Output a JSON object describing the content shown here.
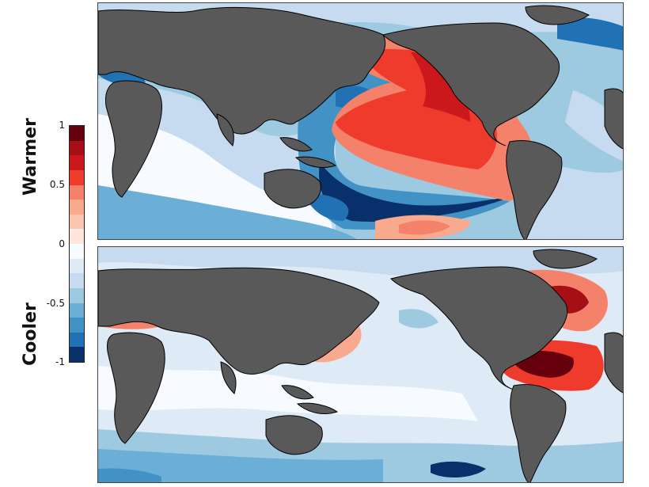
{
  "labels": {
    "warm": "Warmer",
    "cool": "Cooler"
  },
  "colorbar": {
    "ticks": [
      "1",
      "0.5",
      "0",
      "-0.5",
      "-1"
    ],
    "colors": [
      "#67000d",
      "#a50f15",
      "#cb181d",
      "#ef3b2c",
      "#f4826b",
      "#f9a98e",
      "#fcc5b0",
      "#fde6dc",
      "#f7fbff",
      "#deebf7",
      "#c6dbef",
      "#9ecae1",
      "#6baed6",
      "#4292c6",
      "#2171b5",
      "#08306b"
    ]
  },
  "maps": {
    "top": {
      "land_color": "#595959"
    },
    "bottom": {
      "land_color": "#595959"
    }
  }
}
